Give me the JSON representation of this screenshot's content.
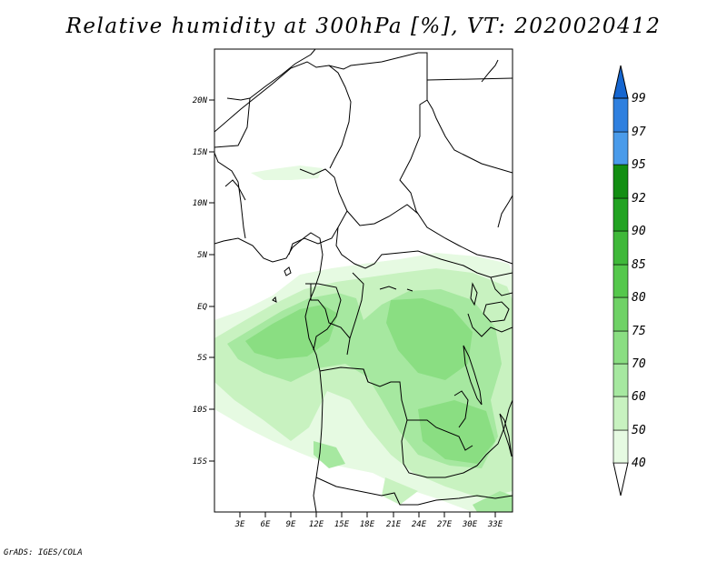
{
  "title": "Relative humidity at 300hPa [%], VT: 2020020412",
  "credit": "GrADS: IGES/COLA",
  "map": {
    "lon_range": [
      0,
      35
    ],
    "lat_range": [
      -20,
      25
    ],
    "lat_labels": [
      "20N",
      "15N",
      "10N",
      "5N",
      "EQ",
      "5S",
      "10S",
      "15S"
    ],
    "lon_labels": [
      "3E",
      "6E",
      "9E",
      "12E",
      "15E",
      "18E",
      "21E",
      "24E",
      "27E",
      "30E",
      "33E"
    ]
  },
  "colorbar": {
    "levels": [
      "40",
      "50",
      "60",
      "70",
      "75",
      "80",
      "85",
      "90",
      "92",
      "95",
      "97",
      "99"
    ],
    "colors": [
      "#ffffff",
      "#e6fae2",
      "#c8f2c0",
      "#a6e8a0",
      "#8ade82",
      "#6fd266",
      "#55c84c",
      "#3fb839",
      "#22a322",
      "#128e12",
      "#4a9bea",
      "#2f80df",
      "#1566d0"
    ]
  }
}
